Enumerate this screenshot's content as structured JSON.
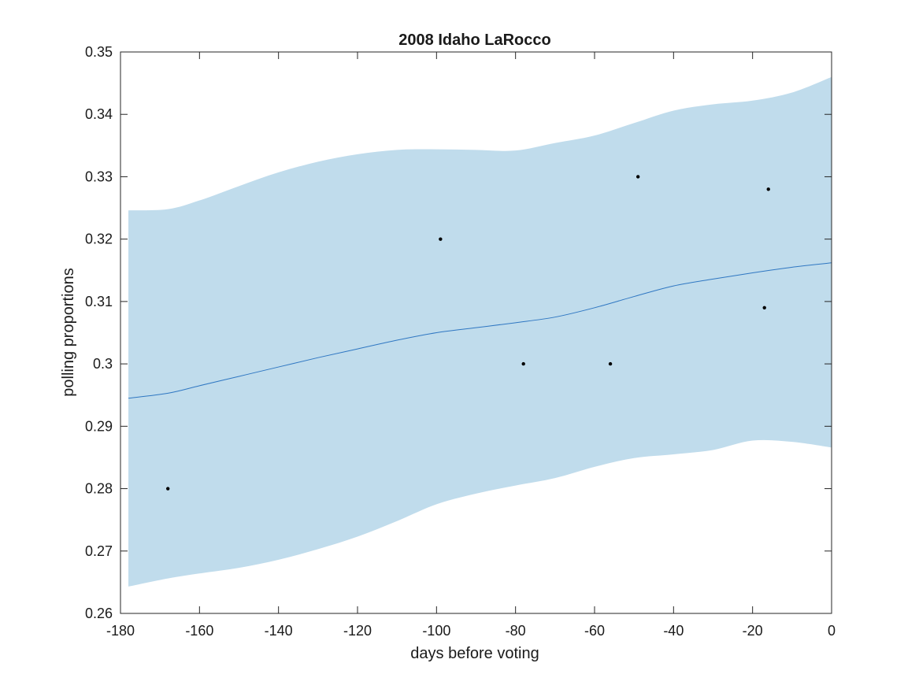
{
  "chart_data": {
    "type": "line",
    "title": "2008 Idaho LaRocco",
    "xlabel": "days before voting",
    "ylabel": "polling proportions",
    "xlim": [
      -180,
      0
    ],
    "ylim": [
      0.26,
      0.35
    ],
    "xticks": [
      -180,
      -160,
      -140,
      -120,
      -100,
      -80,
      -60,
      -40,
      -20,
      0
    ],
    "xtick_labels": [
      "-180",
      "-160",
      "-140",
      "-120",
      "-100",
      "-80",
      "-60",
      "-40",
      "-20",
      "0"
    ],
    "yticks": [
      0.26,
      0.27,
      0.28,
      0.29,
      0.3,
      0.31,
      0.32,
      0.33,
      0.34,
      0.35
    ],
    "ytick_labels": [
      "0.26",
      "0.27",
      "0.28",
      "0.29",
      "0.3",
      "0.31",
      "0.32",
      "0.33",
      "0.34",
      "0.35"
    ],
    "grid": false,
    "colors": {
      "band": "#c0dcec",
      "line": "#2f77c2",
      "points": "#000000",
      "axes": "#262626"
    },
    "series": [
      {
        "kind": "band",
        "x": [
          -178,
          -168,
          -160,
          -150,
          -140,
          -130,
          -120,
          -110,
          -100,
          -90,
          -80,
          -70,
          -60,
          -50,
          -40,
          -30,
          -20,
          -10,
          0
        ],
        "upper": [
          0.3246,
          0.3248,
          0.3262,
          0.3285,
          0.3307,
          0.3324,
          0.3336,
          0.3343,
          0.3344,
          0.3343,
          0.3342,
          0.3354,
          0.3366,
          0.3386,
          0.3406,
          0.3416,
          0.3422,
          0.3435,
          0.346
        ],
        "lower": [
          0.2643,
          0.2656,
          0.2664,
          0.2673,
          0.2686,
          0.2703,
          0.2723,
          0.2748,
          0.2775,
          0.2792,
          0.2805,
          0.2817,
          0.2835,
          0.2849,
          0.2855,
          0.2862,
          0.2877,
          0.2875,
          0.2866
        ]
      },
      {
        "kind": "line",
        "x": [
          -178,
          -168,
          -160,
          -150,
          -140,
          -130,
          -120,
          -110,
          -100,
          -90,
          -80,
          -70,
          -60,
          -50,
          -40,
          -30,
          -20,
          -10,
          0
        ],
        "y": [
          0.2945,
          0.2953,
          0.2965,
          0.298,
          0.2995,
          0.301,
          0.3024,
          0.3038,
          0.305,
          0.3058,
          0.3066,
          0.3075,
          0.309,
          0.3108,
          0.3125,
          0.3136,
          0.3146,
          0.3155,
          0.3162
        ]
      },
      {
        "kind": "scatter",
        "x": [
          -168,
          -99,
          -78,
          -56,
          -49,
          -17,
          -16
        ],
        "y": [
          0.28,
          0.32,
          0.3,
          0.3,
          0.33,
          0.309,
          0.328
        ]
      }
    ]
  }
}
